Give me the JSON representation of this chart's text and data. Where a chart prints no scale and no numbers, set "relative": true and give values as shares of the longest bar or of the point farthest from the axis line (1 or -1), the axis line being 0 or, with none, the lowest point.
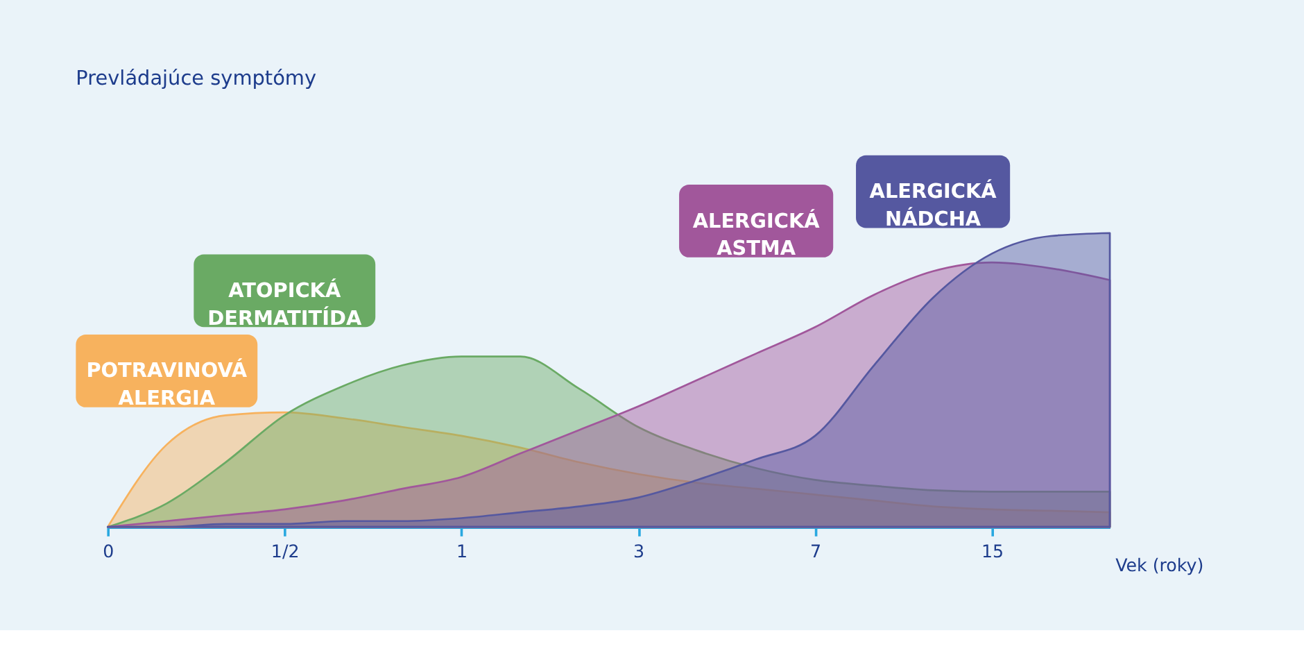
{
  "chart_data": {
    "type": "area",
    "title": "Prevládajúce symptómy",
    "xlabel": "Vek (roky)",
    "relative": true,
    "categories": [
      "0",
      null,
      null,
      "1/2",
      null,
      null,
      "1",
      null,
      null,
      "3",
      null,
      null,
      "7",
      null,
      null,
      "15",
      null,
      null
    ],
    "series": [
      {
        "name": "POTRAVINOVÁ ALERGIA",
        "color": "#f7b25e",
        "values": [
          0,
          0.28,
          0.38,
          0.39,
          0.37,
          0.34,
          0.31,
          0.27,
          0.22,
          0.18,
          0.15,
          0.13,
          0.11,
          0.09,
          0.07,
          0.06,
          0.055,
          0.05
        ]
      },
      {
        "name": "ATOPICKÁ DERMATITÍDA",
        "color": "#6aaa64",
        "values": [
          0,
          0.08,
          0.22,
          0.38,
          0.48,
          0.55,
          0.58,
          0.58,
          0.47,
          0.34,
          0.26,
          0.2,
          0.16,
          0.14,
          0.125,
          0.12,
          0.12,
          0.12
        ]
      },
      {
        "name": "ALERGICKÁ ASTMA",
        "color": "#a1579b",
        "values": [
          0,
          0.02,
          0.04,
          0.06,
          0.09,
          0.13,
          0.17,
          0.25,
          0.33,
          0.41,
          0.5,
          0.59,
          0.68,
          0.79,
          0.87,
          0.9,
          0.88,
          0.84
        ]
      },
      {
        "name": "ALERGICKÁ NÁDCHA",
        "color": "#5558a0",
        "values": [
          0,
          0,
          0.01,
          0.01,
          0.02,
          0.02,
          0.03,
          0.05,
          0.07,
          0.1,
          0.16,
          0.23,
          0.31,
          0.55,
          0.78,
          0.93,
          0.99,
          1
        ]
      }
    ]
  }
}
